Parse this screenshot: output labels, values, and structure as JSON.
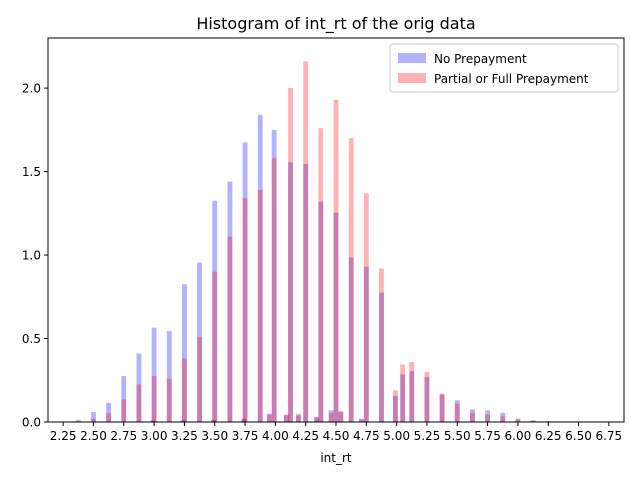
{
  "chart_data": {
    "type": "bar",
    "title": "Histogram of int_rt of the orig data",
    "xlabel": "int_rt",
    "ylabel": "",
    "xlim": [
      2.125,
      6.875
    ],
    "ylim": [
      0,
      2.3
    ],
    "xticks": [
      2.25,
      2.5,
      2.75,
      3.0,
      3.25,
      3.5,
      3.75,
      4.0,
      4.25,
      4.5,
      4.75,
      5.0,
      5.25,
      5.5,
      5.75,
      6.0,
      6.25,
      6.5,
      6.75
    ],
    "xtick_labels": [
      "2.25",
      "2.50",
      "2.75",
      "3.00",
      "3.25",
      "3.50",
      "3.75",
      "4.00",
      "4.25",
      "4.50",
      "4.75",
      "5.00",
      "5.25",
      "5.50",
      "5.75",
      "6.00",
      "6.25",
      "6.50",
      "6.75"
    ],
    "yticks": [
      0.0,
      0.5,
      1.0,
      1.5,
      2.0
    ],
    "ytick_labels": [
      "0.0",
      "0.5",
      "1.0",
      "1.5",
      "2.0"
    ],
    "bin_width": 0.04,
    "legend_position": "top-right",
    "series": [
      {
        "name": "No Prepayment",
        "color": "#0000ff",
        "alpha": 0.3,
        "points": [
          [
            2.25,
            0.003
          ],
          [
            2.375,
            0.013
          ],
          [
            2.5,
            0.06
          ],
          [
            2.625,
            0.115
          ],
          [
            2.75,
            0.275
          ],
          [
            2.875,
            0.41
          ],
          [
            3.0,
            0.565
          ],
          [
            3.125,
            0.545
          ],
          [
            3.25,
            0.825
          ],
          [
            3.375,
            0.955
          ],
          [
            3.5,
            1.325
          ],
          [
            3.625,
            1.44
          ],
          [
            3.75,
            1.675
          ],
          [
            3.875,
            1.84
          ],
          [
            3.99,
            1.75
          ],
          [
            4.125,
            1.555
          ],
          [
            4.25,
            1.545
          ],
          [
            4.375,
            1.32
          ],
          [
            4.5,
            1.255
          ],
          [
            4.625,
            0.985
          ],
          [
            4.75,
            0.93
          ],
          [
            4.875,
            0.775
          ],
          [
            4.99,
            0.155
          ],
          [
            5.05,
            0.285
          ],
          [
            5.125,
            0.305
          ],
          [
            5.25,
            0.27
          ],
          [
            5.375,
            0.165
          ],
          [
            5.5,
            0.13
          ],
          [
            5.625,
            0.075
          ],
          [
            5.75,
            0.07
          ],
          [
            5.875,
            0.055
          ],
          [
            6.0,
            0.02
          ],
          [
            6.125,
            0.01
          ],
          [
            6.25,
            0.005
          ],
          [
            6.375,
            0.003
          ],
          [
            6.5,
            0.002
          ],
          [
            6.75,
            0.001
          ],
          [
            2.99,
            0.01
          ],
          [
            3.24,
            0.01
          ],
          [
            3.49,
            0.012
          ],
          [
            3.74,
            0.02
          ],
          [
            3.95,
            0.05
          ],
          [
            4.09,
            0.04
          ],
          [
            4.19,
            0.04
          ],
          [
            4.34,
            0.03
          ],
          [
            4.46,
            0.07
          ],
          [
            4.54,
            0.06
          ],
          [
            4.71,
            0.02
          ]
        ]
      },
      {
        "name": "Partial or Full Prepayment",
        "color": "#ff0000",
        "alpha": 0.3,
        "points": [
          [
            2.25,
            0.001
          ],
          [
            2.375,
            0.002
          ],
          [
            2.5,
            0.02
          ],
          [
            2.625,
            0.055
          ],
          [
            2.75,
            0.135
          ],
          [
            2.875,
            0.225
          ],
          [
            3.0,
            0.275
          ],
          [
            3.125,
            0.26
          ],
          [
            3.25,
            0.38
          ],
          [
            3.375,
            0.51
          ],
          [
            3.5,
            0.9
          ],
          [
            3.625,
            1.11
          ],
          [
            3.75,
            1.34
          ],
          [
            3.875,
            1.39
          ],
          [
            3.99,
            1.58
          ],
          [
            4.125,
            2.0
          ],
          [
            4.25,
            2.16
          ],
          [
            4.375,
            1.76
          ],
          [
            4.5,
            1.93
          ],
          [
            4.625,
            1.7
          ],
          [
            4.75,
            1.37
          ],
          [
            4.875,
            0.92
          ],
          [
            4.99,
            0.19
          ],
          [
            5.05,
            0.345
          ],
          [
            5.125,
            0.36
          ],
          [
            5.25,
            0.3
          ],
          [
            5.375,
            0.17
          ],
          [
            5.5,
            0.11
          ],
          [
            5.625,
            0.055
          ],
          [
            5.75,
            0.045
          ],
          [
            5.875,
            0.035
          ],
          [
            6.0,
            0.015
          ],
          [
            6.125,
            0.008
          ],
          [
            6.25,
            0.004
          ],
          [
            6.375,
            0.002
          ],
          [
            6.5,
            0.002
          ],
          [
            6.75,
            0.001
          ],
          [
            2.99,
            0.008
          ],
          [
            3.24,
            0.008
          ],
          [
            3.49,
            0.01
          ],
          [
            3.74,
            0.015
          ],
          [
            3.95,
            0.045
          ],
          [
            4.09,
            0.045
          ],
          [
            4.19,
            0.05
          ],
          [
            4.34,
            0.025
          ],
          [
            4.46,
            0.055
          ],
          [
            4.54,
            0.065
          ],
          [
            4.71,
            0.015
          ]
        ]
      }
    ]
  }
}
